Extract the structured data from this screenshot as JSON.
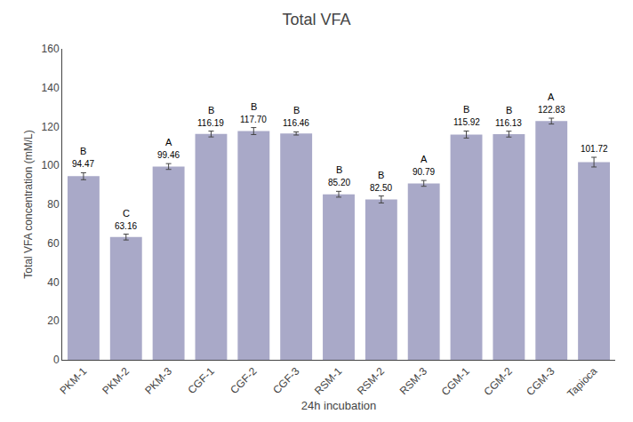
{
  "chart_data": {
    "type": "bar",
    "title": "Total VFA",
    "xlabel": "24h incubation",
    "ylabel": "Total VFA concentration (mM/L)",
    "categories": [
      "PKM-1",
      "PKM-2",
      "PKM-3",
      "CGF-1",
      "CGF-2",
      "CGF-3",
      "RSM-1",
      "RSM-2",
      "RSM-3",
      "CGM-1",
      "CGM-2",
      "CGM-3",
      "Tapioca"
    ],
    "values": [
      94.47,
      63.16,
      99.46,
      116.19,
      117.7,
      116.46,
      85.2,
      82.5,
      90.79,
      115.92,
      116.13,
      122.83,
      101.72
    ],
    "value_labels": [
      "94.47",
      "63.16",
      "99.46",
      "116.19",
      "117.70",
      "116.46",
      "85.20",
      "82.50",
      "90.79",
      "115.92",
      "116.13",
      "122.83",
      "101.72"
    ],
    "errors": [
      1.8,
      1.5,
      1.5,
      1.5,
      1.8,
      0.8,
      1.5,
      1.8,
      1.5,
      1.8,
      1.5,
      1.5,
      2.5
    ],
    "significance": [
      "B",
      "C",
      "A",
      "B",
      "B",
      "B",
      "B",
      "B",
      "A",
      "B",
      "B",
      "A",
      null
    ],
    "color": "#a9a9c8",
    "ylim": [
      0,
      160
    ],
    "yticks": [
      0,
      20,
      40,
      60,
      80,
      100,
      120,
      140,
      160
    ],
    "grid": false,
    "data_labels": true
  }
}
